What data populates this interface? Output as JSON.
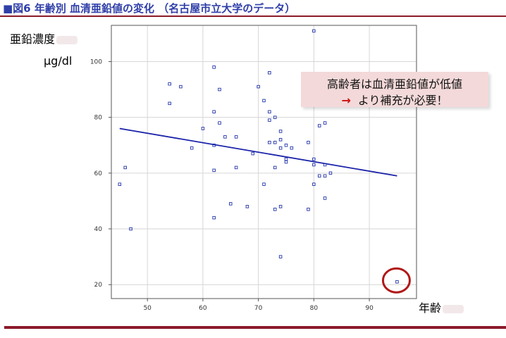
{
  "header": {
    "title": "■図6 年齢別 血清亜鉛値の変化 （名古屋市立大学のデータ）"
  },
  "axis_text": {
    "ylabel": "亜鉛濃度",
    "yunit": "μg/dl",
    "xlabel": "年齢"
  },
  "callout": {
    "line1": "高齢者は血清亜鉛値が低値",
    "arrow": "→",
    "line2": "より補充が必要！"
  },
  "colors": {
    "title": "#2f3fa8",
    "rule": "#8b1a2b",
    "points": "#2233aa",
    "trend": "#1a22aa",
    "highlight_circle": "#b01818",
    "callout_bg": "#f3d9d9",
    "arrow": "#cc1111"
  },
  "chart_data": {
    "type": "scatter",
    "title": "",
    "xlabel": "年齢",
    "ylabel": "亜鉛濃度",
    "xlim": [
      43.5,
      98.5
    ],
    "ylim": [
      15,
      113
    ],
    "xticks": [
      50,
      60,
      70,
      80,
      90
    ],
    "yticks": [
      20,
      40,
      60,
      80,
      100
    ],
    "grid": true,
    "points": [
      {
        "x": 45,
        "y": 56
      },
      {
        "x": 46,
        "y": 62
      },
      {
        "x": 47,
        "y": 40
      },
      {
        "x": 54,
        "y": 92
      },
      {
        "x": 54,
        "y": 85
      },
      {
        "x": 56,
        "y": 91
      },
      {
        "x": 58,
        "y": 69
      },
      {
        "x": 60,
        "y": 76
      },
      {
        "x": 62,
        "y": 98
      },
      {
        "x": 62,
        "y": 82
      },
      {
        "x": 62,
        "y": 70
      },
      {
        "x": 62,
        "y": 61
      },
      {
        "x": 62,
        "y": 44
      },
      {
        "x": 63,
        "y": 90
      },
      {
        "x": 63,
        "y": 78
      },
      {
        "x": 64,
        "y": 73
      },
      {
        "x": 65,
        "y": 49
      },
      {
        "x": 66,
        "y": 73
      },
      {
        "x": 66,
        "y": 62
      },
      {
        "x": 68,
        "y": 48
      },
      {
        "x": 69,
        "y": 67
      },
      {
        "x": 70,
        "y": 91
      },
      {
        "x": 71,
        "y": 86
      },
      {
        "x": 71,
        "y": 56
      },
      {
        "x": 72,
        "y": 96
      },
      {
        "x": 72,
        "y": 82
      },
      {
        "x": 72,
        "y": 79
      },
      {
        "x": 72,
        "y": 71
      },
      {
        "x": 73,
        "y": 80
      },
      {
        "x": 73,
        "y": 71
      },
      {
        "x": 73,
        "y": 62
      },
      {
        "x": 73,
        "y": 47
      },
      {
        "x": 74,
        "y": 75
      },
      {
        "x": 74,
        "y": 72
      },
      {
        "x": 74,
        "y": 69
      },
      {
        "x": 74,
        "y": 48
      },
      {
        "x": 74,
        "y": 30
      },
      {
        "x": 75,
        "y": 70
      },
      {
        "x": 75,
        "y": 65
      },
      {
        "x": 75,
        "y": 64
      },
      {
        "x": 76,
        "y": 69
      },
      {
        "x": 79,
        "y": 71
      },
      {
        "x": 79,
        "y": 47
      },
      {
        "x": 80,
        "y": 111
      },
      {
        "x": 80,
        "y": 65
      },
      {
        "x": 80,
        "y": 63
      },
      {
        "x": 80,
        "y": 56
      },
      {
        "x": 81,
        "y": 77
      },
      {
        "x": 81,
        "y": 59
      },
      {
        "x": 82,
        "y": 78
      },
      {
        "x": 82,
        "y": 63
      },
      {
        "x": 82,
        "y": 59
      },
      {
        "x": 82,
        "y": 51
      },
      {
        "x": 83,
        "y": 60
      },
      {
        "x": 95,
        "y": 21
      }
    ],
    "trendline": {
      "x": [
        45,
        95
      ],
      "y": [
        76,
        59
      ]
    },
    "highlighted_point": {
      "x": 95,
      "y": 21
    }
  }
}
